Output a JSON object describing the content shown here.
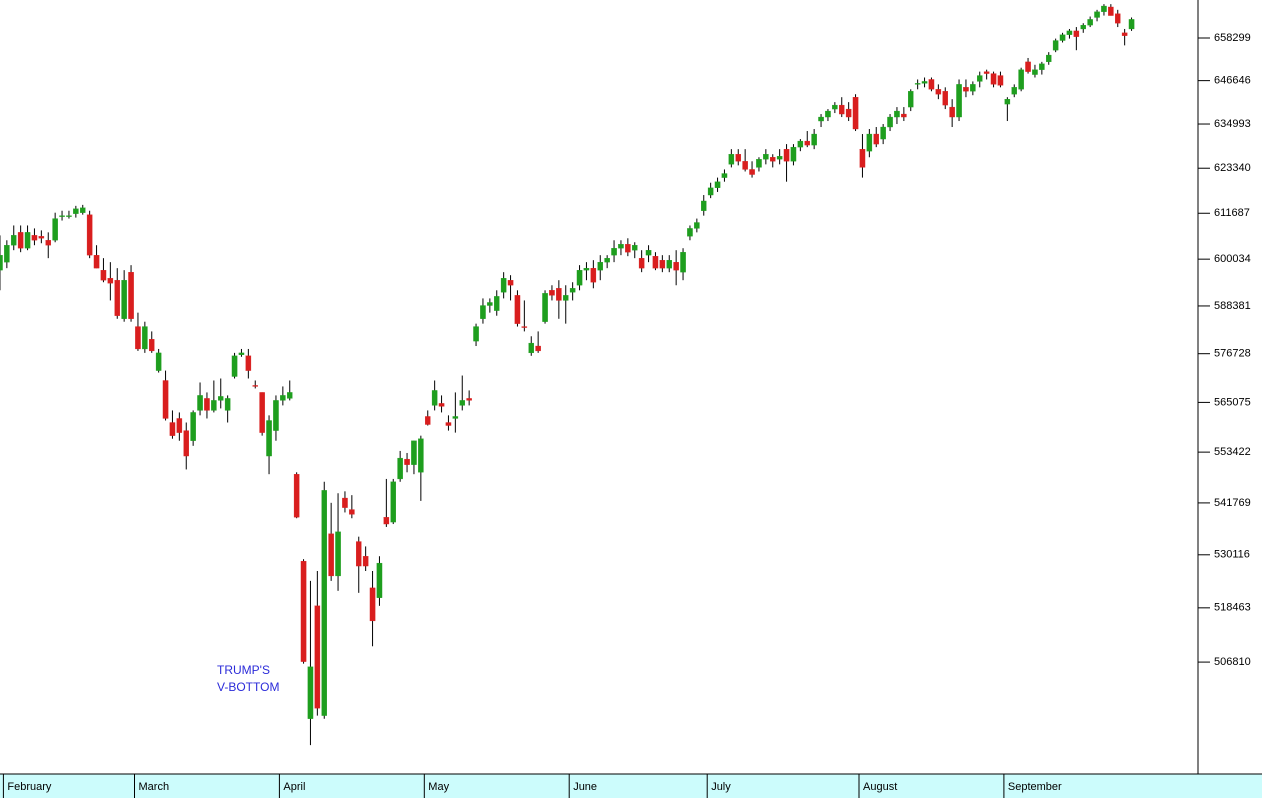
{
  "chart_data": {
    "type": "candlestick",
    "log": true,
    "up_color": "#1e9e1e",
    "down_color": "#d91e1e",
    "ylim": [
      483590,
      668868
    ],
    "yticks": [
      658299,
      646646,
      634993,
      623340,
      611687,
      600034,
      588381,
      576728,
      565075,
      553422,
      541769,
      530116,
      518463,
      506810
    ],
    "annotation": [
      "TRUMP'S",
      "V-BOTTOM"
    ],
    "categories": [
      null,
      "February",
      null,
      null,
      null,
      null,
      null,
      null,
      null,
      null,
      null,
      null,
      null,
      null,
      null,
      null,
      null,
      null,
      null,
      null,
      "March",
      null,
      null,
      null,
      null,
      null,
      null,
      null,
      null,
      null,
      null,
      null,
      null,
      null,
      null,
      null,
      null,
      null,
      null,
      null,
      null,
      "April",
      null,
      null,
      null,
      null,
      null,
      null,
      null,
      null,
      null,
      null,
      null,
      null,
      null,
      null,
      null,
      null,
      null,
      null,
      null,
      null,
      "May",
      null,
      null,
      null,
      null,
      null,
      null,
      null,
      null,
      null,
      null,
      null,
      null,
      null,
      null,
      null,
      null,
      null,
      null,
      null,
      null,
      "June",
      null,
      null,
      null,
      null,
      null,
      null,
      null,
      null,
      null,
      null,
      null,
      null,
      null,
      null,
      null,
      null,
      null,
      null,
      null,
      "July",
      null,
      null,
      null,
      null,
      null,
      null,
      null,
      null,
      null,
      null,
      null,
      null,
      null,
      null,
      null,
      null,
      null,
      null,
      null,
      null,
      null,
      "August",
      null,
      null,
      null,
      null,
      null,
      null,
      null,
      null,
      null,
      null,
      null,
      null,
      null,
      null,
      null,
      null,
      null,
      null,
      null,
      null,
      "September",
      null,
      null,
      null,
      null,
      null,
      null,
      null,
      null,
      null,
      null,
      null,
      null,
      null,
      null,
      null,
      null,
      null,
      null
    ],
    "open": [
      597273,
      599281,
      603548,
      606811,
      602795,
      606058,
      605807,
      604803,
      604803,
      610827,
      611078,
      611580,
      611831,
      611329,
      601038,
      597273,
      595265,
      594763,
      585225,
      596771,
      583324,
      577873,
      580243,
      572659,
      570289,
      560335,
      561283,
      558439,
      556069,
      563179,
      566023,
      563179,
      565549,
      563179,
      571237,
      576451,
      576214,
      569104,
      567445,
      552514,
      558439,
      565549,
      566023,
      548329,
      528709,
      494919,
      518899,
      495573,
      534813,
      525439,
      542879,
      540263,
      533069,
      529799,
      522823,
      520643,
      538519,
      537429,
      547239,
      551803,
      550509,
      548765,
      561757,
      564364,
      564838,
      560335,
      561283,
      564364,
      566023,
      579769,
      585225,
      588488,
      587233,
      591751,
      594763,
      591000,
      583324,
      576925,
      578584,
      584509,
      592253,
      592755,
      589743,
      591751,
      593508,
      597273,
      597775,
      597273,
      599281,
      601038,
      602795,
      603799,
      602293,
      600285,
      601038,
      600787,
      599783,
      597775,
      599281,
      596771,
      605807,
      607815,
      612333,
      616373,
      618235,
      620895,
      624353,
      627013,
      625151,
      623023,
      623555,
      625683,
      626215,
      625683,
      628343,
      625151,
      628875,
      630471,
      629407,
      635791,
      636855,
      638983,
      640047,
      638983,
      642175,
      628343,
      627811,
      632333,
      631003,
      634195,
      636855,
      637653,
      639515,
      645633,
      645899,
      646963,
      644303,
      643771,
      639515,
      636855,
      644835,
      643771,
      646431,
      649091,
      648559,
      648027,
      640313,
      642973,
      644303,
      651751,
      648293,
      649623,
      651751,
      654943,
      657603,
      659199,
      660263,
      660795,
      661859,
      663987,
      665583,
      666913,
      665051,
      659731,
      660795
    ],
    "high": [
      606058,
      604803,
      608568,
      608568,
      608568,
      607815,
      607313,
      606811,
      611831,
      612333,
      612333,
      613588,
      613839,
      612333,
      603548,
      600285,
      599281,
      597775,
      597273,
      598528,
      586731,
      584509,
      582139,
      577873,
      572659,
      563179,
      562705,
      560335,
      563179,
      569815,
      567445,
      570289,
      570763,
      566734,
      576925,
      577873,
      577873,
      570289,
      567445,
      562018,
      566734,
      568867,
      570289,
      548765,
      529145,
      524349,
      526529,
      546585,
      541789,
      543969,
      544405,
      543533,
      534159,
      531979,
      526529,
      529799,
      547239,
      547239,
      553699,
      553225,
      556069,
      557254,
      563179,
      570289,
      566734,
      562018,
      567445,
      571474,
      567919,
      584035,
      590245,
      590245,
      592253,
      596771,
      596018,
      592253,
      589743,
      580954,
      582139,
      592253,
      593508,
      594763,
      593508,
      594261,
      598528,
      599281,
      599783,
      601038,
      601038,
      604803,
      604803,
      605305,
      604301,
      602293,
      603548,
      601791,
      601038,
      601038,
      602293,
      602795,
      608568,
      610325,
      616373,
      619565,
      620895,
      623023,
      628343,
      628343,
      628343,
      625151,
      626215,
      628343,
      627013,
      628343,
      629673,
      629673,
      631003,
      633131,
      633663,
      637653,
      638983,
      640845,
      642175,
      640845,
      642973,
      632333,
      633663,
      634195,
      634993,
      637653,
      639515,
      639515,
      644303,
      646963,
      647495,
      647495,
      645633,
      644835,
      641643,
      646963,
      646963,
      646431,
      649091,
      649623,
      649091,
      649091,
      642175,
      645633,
      650155,
      652815,
      650953,
      651751,
      654411,
      658135,
      659731,
      660795,
      661327,
      662391,
      664253,
      666115,
      667711,
      667711,
      666115,
      660795,
      663987
    ],
    "low": [
      592253,
      597775,
      602293,
      601791,
      602293,
      603548,
      604050,
      600285,
      604301,
      609823,
      610325,
      610576,
      611329,
      600285,
      597775,
      594261,
      589743,
      585225,
      584509,
      584509,
      577399,
      576925,
      576925,
      572185,
      560809,
      556543,
      556069,
      549419,
      554884,
      562018,
      561283,
      562705,
      563653,
      560335,
      570763,
      575977,
      570763,
      568393,
      557254,
      548329,
      556069,
      564364,
      565549,
      538301,
      506473,
      489469,
      495573,
      494919,
      524349,
      522169,
      539609,
      538301,
      521733,
      526529,
      510179,
      518899,
      536339,
      536993,
      546585,
      548765,
      548329,
      542225,
      559624,
      563179,
      562705,
      558439,
      557965,
      563179,
      564364,
      578584,
      584035,
      586731,
      585978,
      590245,
      589743,
      583324,
      582139,
      576214,
      576925,
      584035,
      589743,
      585225,
      584035,
      589743,
      592253,
      594763,
      592755,
      594763,
      597775,
      599281,
      601038,
      600787,
      600285,
      596771,
      599281,
      597273,
      596771,
      596771,
      593508,
      594763,
      604803,
      606811,
      611078,
      615575,
      617171,
      619831,
      623555,
      624087,
      622491,
      620895,
      622491,
      624353,
      623555,
      624353,
      619831,
      624087,
      627811,
      628875,
      628343,
      634195,
      635791,
      637919,
      636855,
      635791,
      633131,
      620895,
      626215,
      628875,
      629673,
      633131,
      634993,
      635791,
      638451,
      644303,
      644835,
      643771,
      641643,
      638983,
      634195,
      635791,
      642175,
      642707,
      644835,
      646963,
      644835,
      644835,
      635791,
      642175,
      643771,
      648559,
      647495,
      648293,
      650953,
      654411,
      657071,
      658135,
      654943,
      659731,
      661327,
      662923,
      664519,
      664519,
      661327,
      656273,
      660263
    ],
    "close": [
      601038,
      603548,
      606058,
      602795,
      606811,
      604803,
      605305,
      603548,
      610325,
      611078,
      611078,
      612835,
      613086,
      601038,
      597775,
      594763,
      594010,
      585978,
      594763,
      585225,
      577873,
      583324,
      577399,
      576925,
      561283,
      557254,
      557965,
      552514,
      562705,
      566734,
      563179,
      565549,
      566497,
      566023,
      576214,
      576925,
      572659,
      568867,
      557965,
      560809,
      565549,
      566734,
      567445,
      538519,
      506909,
      505819,
      497099,
      544623,
      525439,
      535249,
      540699,
      539173,
      527619,
      527619,
      515629,
      528273,
      536993,
      546585,
      552040,
      550509,
      556069,
      556543,
      559861,
      567919,
      564127,
      559624,
      561757,
      565549,
      565549,
      583324,
      588488,
      589241,
      590747,
      595265,
      593508,
      584035,
      583087,
      579295,
      577399,
      591500,
      591000,
      589743,
      591000,
      592755,
      597273,
      597775,
      594261,
      599281,
      600285,
      602795,
      603799,
      601791,
      603548,
      597775,
      602293,
      597775,
      597775,
      599783,
      597273,
      601791,
      607815,
      609321,
      614843,
      618235,
      619831,
      621959,
      627013,
      625151,
      623023,
      621693,
      625683,
      627013,
      625151,
      626481,
      625151,
      628875,
      630471,
      629407,
      632333,
      636855,
      638451,
      640047,
      637653,
      636855,
      633663,
      623555,
      632333,
      629673,
      634195,
      636855,
      638451,
      636855,
      643771,
      645899,
      646431,
      644303,
      642973,
      640047,
      636855,
      645633,
      643771,
      645633,
      648027,
      648559,
      645633,
      645367,
      641643,
      644835,
      649623,
      649091,
      649623,
      651219,
      653613,
      657603,
      659199,
      660263,
      658667,
      661859,
      663455,
      665583,
      667179,
      664519,
      662391,
      658933,
      663455
    ]
  }
}
